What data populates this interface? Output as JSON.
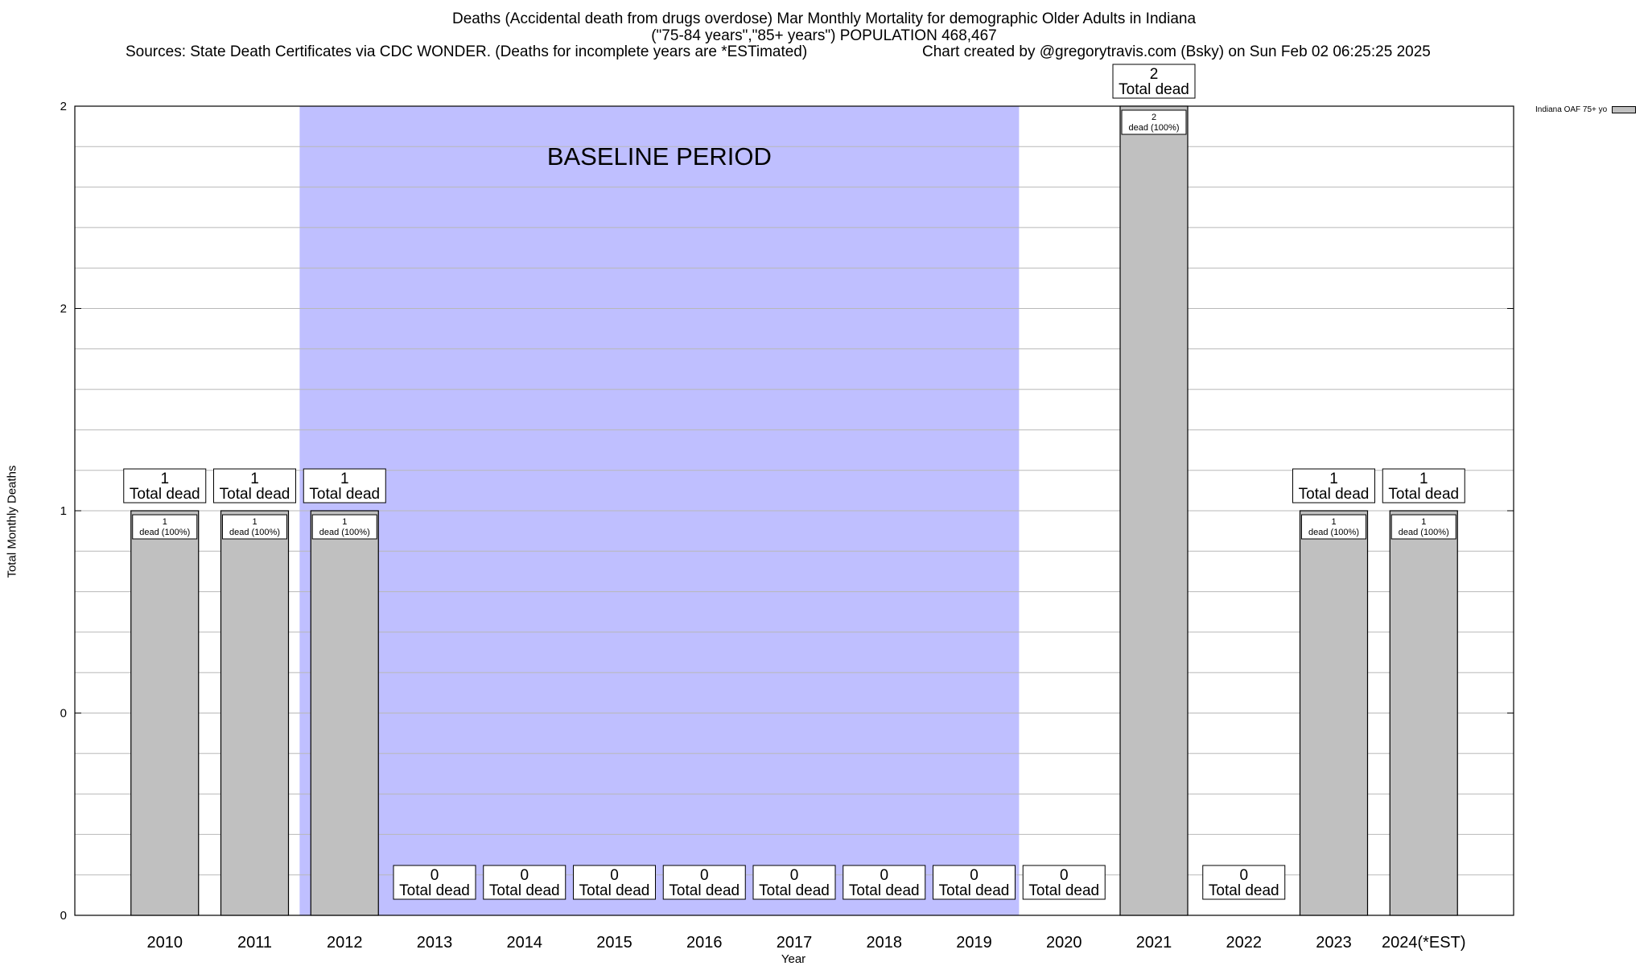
{
  "header": {
    "title_line1": "Deaths (Accidental death from drugs overdose) Mar Monthly Mortality for demographic Older Adults in Indiana",
    "title_line2": "(\"75-84 years\",\"85+ years\") POPULATION 468,467",
    "sources": "Sources: State Death Certificates via CDC WONDER. (Deaths for incomplete years are *ESTimated)",
    "credit": "Chart created by @gregorytravis.com (Bsky) on Sun Feb 02 06:25:25 2025"
  },
  "legend": {
    "label": "Indiana OAF 75+ yo"
  },
  "chart_data": {
    "type": "bar",
    "title": "Deaths (Accidental death from drugs overdose) Mar Monthly Mortality for demographic Older Adults in Indiana",
    "xlabel": "Year",
    "ylabel": "Total Monthly Deaths",
    "categories": [
      "2010",
      "2011",
      "2012",
      "2013",
      "2014",
      "2015",
      "2016",
      "2017",
      "2018",
      "2019",
      "2020",
      "2021",
      "2022",
      "2023",
      "2024(*EST)"
    ],
    "series": [
      {
        "name": "Indiana OAF 75+ yo",
        "values": [
          1,
          1,
          1,
          0,
          0,
          0,
          0,
          0,
          0,
          0,
          0,
          2,
          0,
          1,
          1
        ]
      }
    ],
    "ylim": [
      0,
      2
    ],
    "ytick_labels": [
      "0",
      "0",
      "1",
      "2",
      "2"
    ],
    "bar_top_labels": [
      "1\nTotal dead",
      "1\nTotal dead",
      "1\nTotal dead",
      "0\nTotal dead",
      "0\nTotal dead",
      "0\nTotal dead",
      "0\nTotal dead",
      "0\nTotal dead",
      "0\nTotal dead",
      "0\nTotal dead",
      "0\nTotal dead",
      "2\nTotal dead",
      "0\nTotal dead",
      "1\nTotal dead",
      "1\nTotal dead"
    ],
    "bar_inner_labels": [
      "1\ndead (100%)",
      "1\ndead (100%)",
      "1\ndead (100%)",
      "",
      "",
      "",
      "",
      "",
      "",
      "",
      "",
      "2\ndead (100%)",
      "",
      "1\ndead (100%)",
      "1\ndead (100%)"
    ],
    "annotations": [
      {
        "text": "BASELINE PERIOD",
        "x_start": "2012",
        "x_end": "2019"
      }
    ],
    "baseline_color": "#bfbfff",
    "bar_color": "#c0c0c0",
    "grid": true,
    "legend_position": "top-right"
  }
}
